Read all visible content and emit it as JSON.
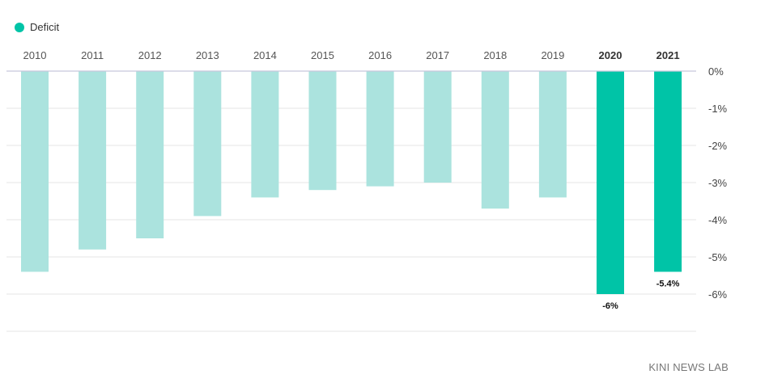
{
  "chart_data": {
    "type": "bar",
    "categories": [
      "2010",
      "2011",
      "2012",
      "2013",
      "2014",
      "2015",
      "2016",
      "2017",
      "2018",
      "2019",
      "2020",
      "2021"
    ],
    "series": [
      {
        "name": "Deficit",
        "values": [
          -5.4,
          -4.8,
          -4.5,
          -3.9,
          -3.4,
          -3.2,
          -3.1,
          -3.0,
          -3.7,
          -3.4,
          -6.0,
          -5.4
        ]
      }
    ],
    "highlighted_categories": [
      "2020",
      "2021"
    ],
    "data_labels": {
      "2020": "-6%",
      "2021": "-5.4%"
    },
    "ylim": [
      -7,
      0
    ],
    "yticks": [
      0,
      -1,
      -2,
      -3,
      -4,
      -5,
      -6
    ],
    "ytick_labels": [
      "0%",
      "-1%",
      "-2%",
      "-3%",
      "-4%",
      "-5%",
      "-6%"
    ],
    "x_axis_position": "top",
    "y_axis_position": "right",
    "grid": true,
    "legend_position": "top-left",
    "colors": {
      "base": "#abe3de",
      "highlight": "#00c4a7",
      "grid": "#e6e6e6",
      "zero_line": "#c8c8dc"
    }
  },
  "credit": "KINI NEWS LAB"
}
